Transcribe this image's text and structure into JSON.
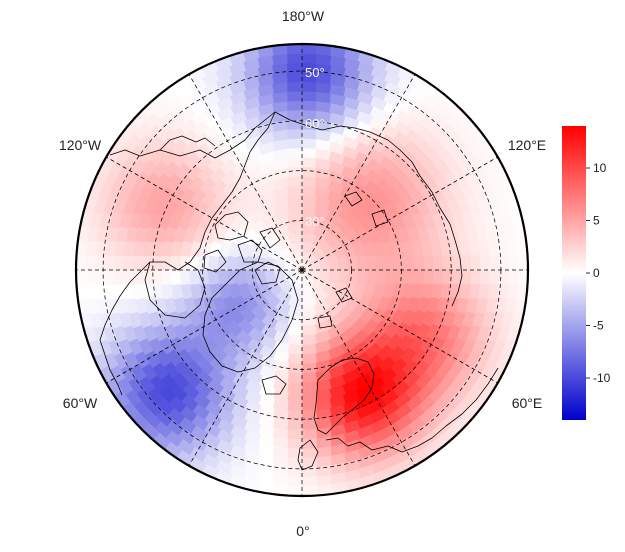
{
  "map": {
    "projection": "north-polar-stereographic",
    "longitude_labels": {
      "top": "180°W",
      "upper_left": "120°W",
      "upper_right": "120°E",
      "lower_left": "60°W",
      "lower_right": "60°E",
      "bottom": "0°"
    },
    "latitude_labels": [
      "50°",
      "60°",
      "80°"
    ],
    "colors": {
      "negative": "#0000cc",
      "zero": "#ffffff",
      "positive": "#ff0000",
      "graticule": "#000000",
      "coastline": "#000000",
      "outline": "#000000"
    }
  },
  "colorbar": {
    "range": [
      -14,
      14
    ],
    "ticks": [
      {
        "value": 10,
        "label": "10"
      },
      {
        "value": 5,
        "label": "5"
      },
      {
        "value": 0,
        "label": "0"
      },
      {
        "value": -5,
        "label": "-5"
      },
      {
        "value": -10,
        "label": "-10"
      }
    ]
  },
  "anomaly_centers": [
    {
      "region": "north-pacific",
      "sign": "negative",
      "strength": 10
    },
    {
      "region": "siberia-arctic-belt",
      "sign": "positive",
      "strength": 6
    },
    {
      "region": "alaska-yukon",
      "sign": "positive",
      "strength": 5
    },
    {
      "region": "greenland-baffin",
      "sign": "negative",
      "strength": 6
    },
    {
      "region": "hudson-labrador",
      "sign": "negative",
      "strength": 10
    },
    {
      "region": "scandinavia-europe",
      "sign": "positive",
      "strength": 13
    },
    {
      "region": "west-russia",
      "sign": "positive",
      "strength": 7
    }
  ]
}
